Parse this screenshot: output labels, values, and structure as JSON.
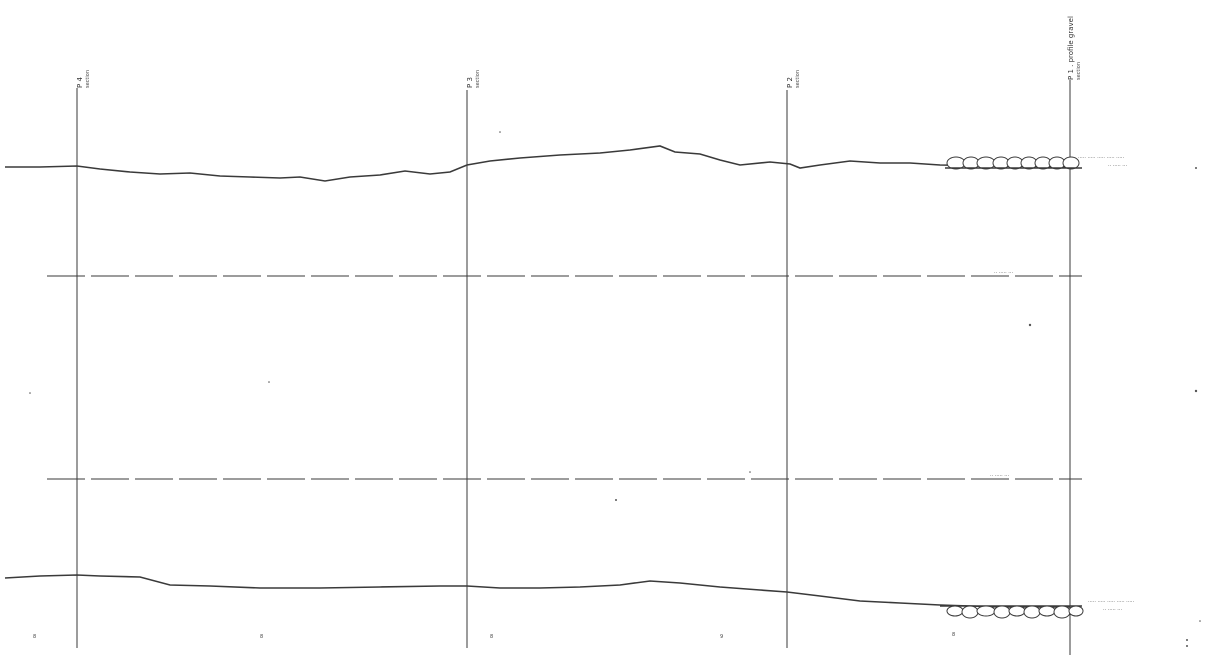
{
  "stations": [
    {
      "id": "p4",
      "label": "P 4",
      "sub": "section"
    },
    {
      "id": "p3",
      "label": "P 3",
      "sub": "section"
    },
    {
      "id": "p2",
      "label": "P 2",
      "sub": "section"
    },
    {
      "id": "p1",
      "label": "P 1 . profile gravel",
      "sub": "section"
    }
  ],
  "annotations": {
    "upper_note": "····· ····· ····· ····· ·····",
    "upper_note2": "·· ····· ···",
    "mid_label_1": "·· ····· ···",
    "mid_label_2": "·· ····· ···",
    "lower_note": "····· ····· ····· ····· ·····",
    "lower_note2": "·· ····· ···"
  },
  "bottom_marks": [
    "8",
    "8",
    "8",
    "9",
    "8"
  ],
  "colors": {
    "line": "#3a3a3a",
    "ink": "#222222",
    "paper": "#ffffff"
  }
}
